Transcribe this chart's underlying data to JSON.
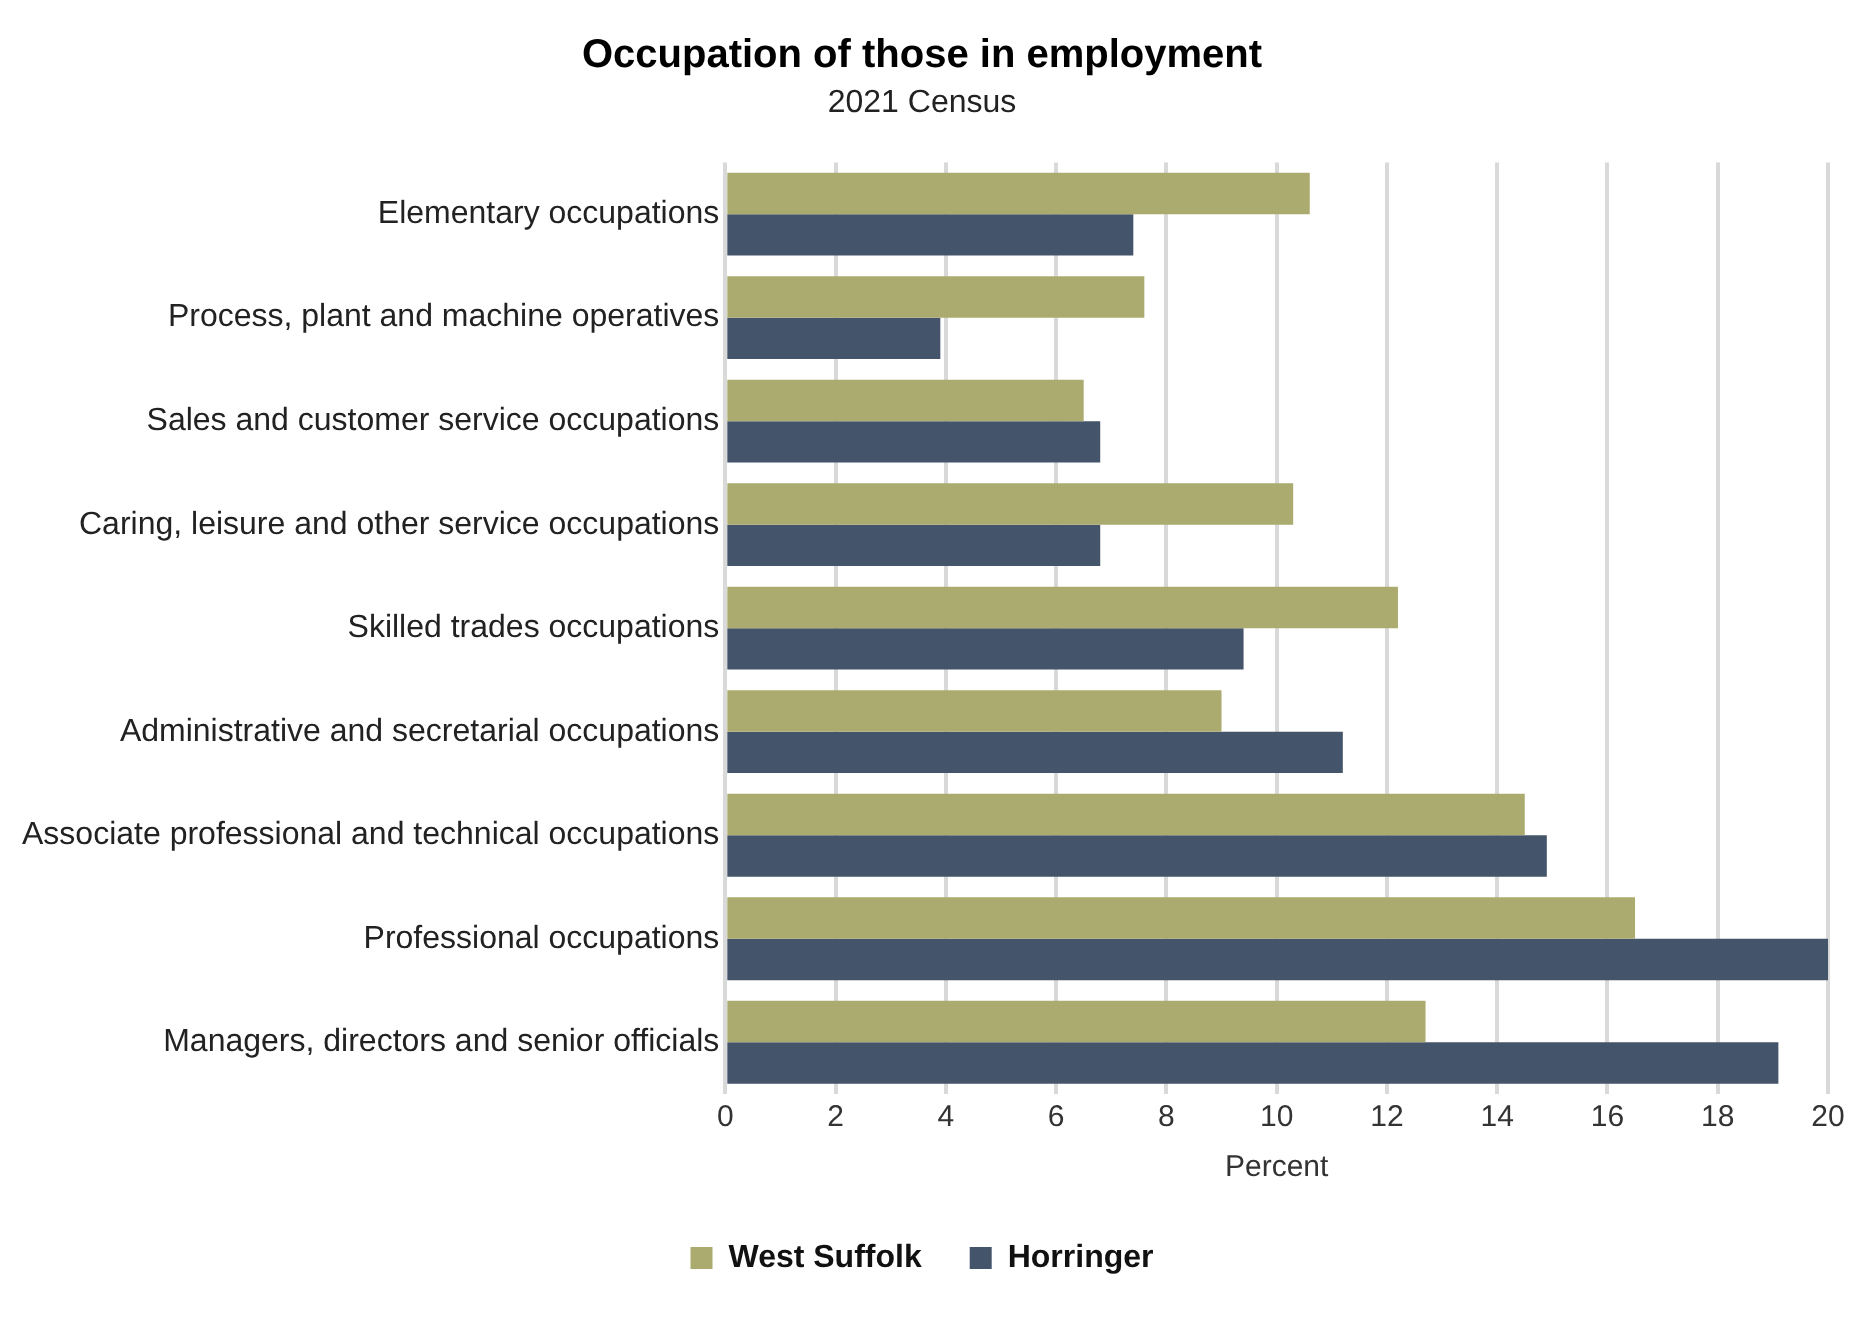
{
  "chart_data": {
    "type": "bar",
    "orientation": "horizontal",
    "title": "Occupation of those in employment",
    "subtitle": "2021 Census",
    "xlabel": "Percent",
    "categories": [
      "Elementary occupations",
      "Process, plant and machine operatives",
      "Sales and customer service occupations",
      "Caring, leisure and other service occupations",
      "Skilled trades occupations",
      "Administrative and secretarial occupations",
      "Associate professional and technical occupations",
      "Professional occupations",
      "Managers, directors and senior officials"
    ],
    "series": [
      {
        "name": "West Suffolk",
        "color": "#abab6f",
        "values": [
          10.6,
          7.6,
          6.5,
          10.3,
          12.2,
          9.0,
          14.5,
          16.5,
          12.7
        ]
      },
      {
        "name": "Horringer",
        "color": "#44546a",
        "values": [
          7.4,
          3.9,
          6.8,
          6.8,
          9.4,
          11.2,
          14.9,
          20.0,
          19.1
        ]
      }
    ],
    "xlim": [
      0,
      20
    ],
    "xticks": [
      0,
      2,
      4,
      6,
      8,
      10,
      12,
      14,
      16,
      18,
      20
    ],
    "grid": "x",
    "legend": "bottom"
  }
}
